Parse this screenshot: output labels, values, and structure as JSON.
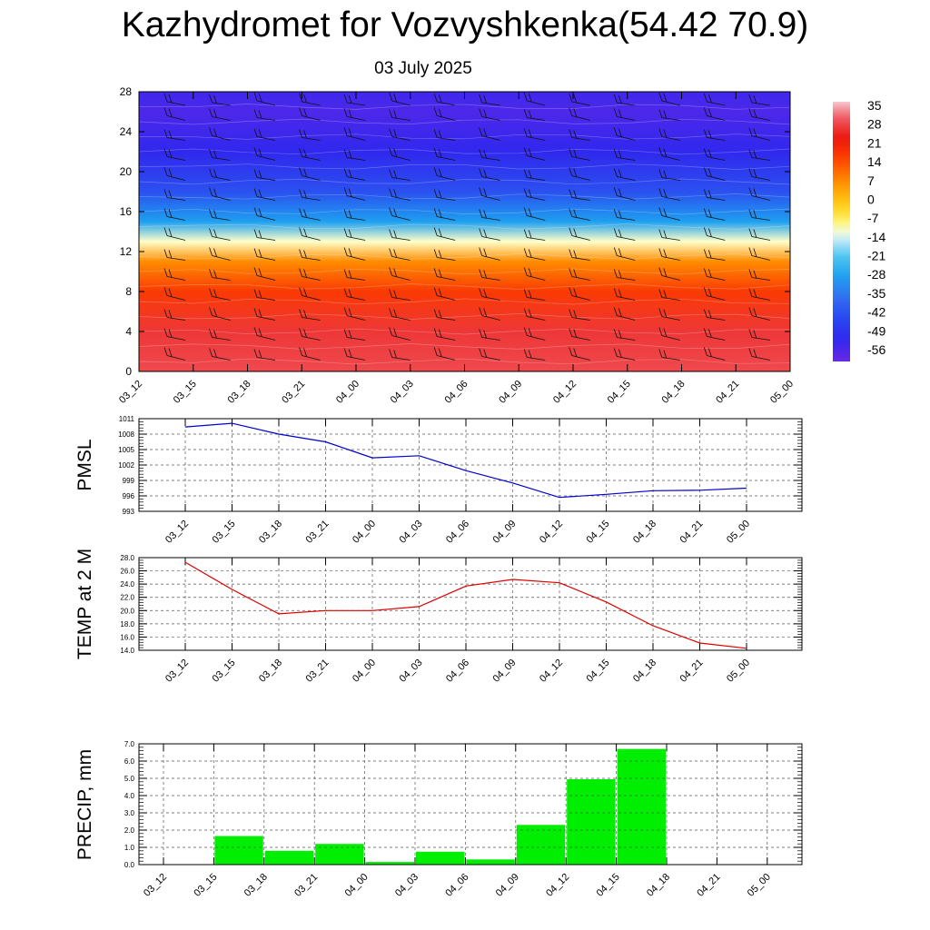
{
  "title": "Kazhydromet for Vozvyshkenka(54.42 70.9)",
  "subtitle": "03 July 2025",
  "colors": {
    "pmsl_line": "#0000cc",
    "temp_line": "#dd0000",
    "precip_bar": "#00ee00",
    "grid": "#555555"
  },
  "chart_data": [
    {
      "type": "heatmap",
      "title": "",
      "x_ticks": [
        "03_12",
        "03_15",
        "03_18",
        "03_21",
        "04_00",
        "04_03",
        "04_06",
        "04_09",
        "04_12",
        "04_15",
        "04_18",
        "04_21",
        "05_00"
      ],
      "y_ticks": [
        "0",
        "4",
        "8",
        "12",
        "16",
        "20",
        "24",
        "28"
      ],
      "ylim": [
        0,
        28
      ],
      "colorbar_labels": [
        "35",
        "28",
        "21",
        "14",
        "7",
        "0",
        "-7",
        "-14",
        "-21",
        "-28",
        "-35",
        "-42",
        "-49",
        "-56"
      ],
      "colorbar_range": [
        -60,
        38
      ],
      "overlay": "wind barbs",
      "temperature_profile": [
        {
          "level": 0,
          "value": 30
        },
        {
          "level": 4,
          "value": 28
        },
        {
          "level": 8,
          "value": 18
        },
        {
          "level": 11,
          "value": 8
        },
        {
          "level": 13,
          "value": -10
        },
        {
          "level": 15,
          "value": -28
        },
        {
          "level": 18,
          "value": -42
        },
        {
          "level": 22,
          "value": -52
        },
        {
          "level": 26,
          "value": -56
        },
        {
          "level": 28,
          "value": -54
        }
      ]
    },
    {
      "type": "line",
      "ylabel": "PMSL",
      "y_ticks": [
        "993",
        "996",
        "999",
        "1002",
        "1005",
        "1008",
        "1011"
      ],
      "ylim": [
        993,
        1011
      ],
      "categories": [
        "03_12",
        "03_15",
        "03_18",
        "03_21",
        "04_00",
        "04_03",
        "04_06",
        "04_09",
        "04_12",
        "04_15",
        "04_18",
        "04_21",
        "05_00"
      ],
      "values": [
        1009.4,
        1010.1,
        1008.0,
        1006.5,
        1003.4,
        1003.8,
        1000.9,
        998.5,
        995.7,
        996.3,
        997.0,
        997.1,
        997.5
      ],
      "grid": true
    },
    {
      "type": "line",
      "ylabel": "TEMP at 2 M",
      "y_ticks": [
        "14.0",
        "16.0",
        "18.0",
        "20.0",
        "22.0",
        "24.0",
        "26.0",
        "28.0"
      ],
      "ylim": [
        14,
        28
      ],
      "categories": [
        "03_12",
        "03_15",
        "03_18",
        "03_21",
        "04_00",
        "04_03",
        "04_06",
        "04_09",
        "04_12",
        "04_15",
        "04_18",
        "04_21",
        "05_00"
      ],
      "values": [
        27.3,
        23.2,
        19.5,
        20.0,
        20.0,
        20.6,
        23.7,
        24.7,
        24.2,
        21.3,
        17.7,
        15.1,
        14.3
      ],
      "grid": true
    },
    {
      "type": "bar",
      "ylabel": "PRECIP, mm",
      "y_ticks": [
        "0.0",
        "1.0",
        "2.0",
        "3.0",
        "4.0",
        "5.0",
        "6.0",
        "7.0"
      ],
      "ylim": [
        0,
        7
      ],
      "categories": [
        "03_12",
        "03_15",
        "03_18",
        "03_21",
        "04_00",
        "04_03",
        "04_06",
        "04_09",
        "04_12",
        "04_15",
        "04_18",
        "04_21",
        "05_00"
      ],
      "values": [
        0,
        1.65,
        0.8,
        1.2,
        0.15,
        0.75,
        0.3,
        2.3,
        4.95,
        6.7,
        0,
        0,
        0
      ],
      "grid": true
    }
  ]
}
